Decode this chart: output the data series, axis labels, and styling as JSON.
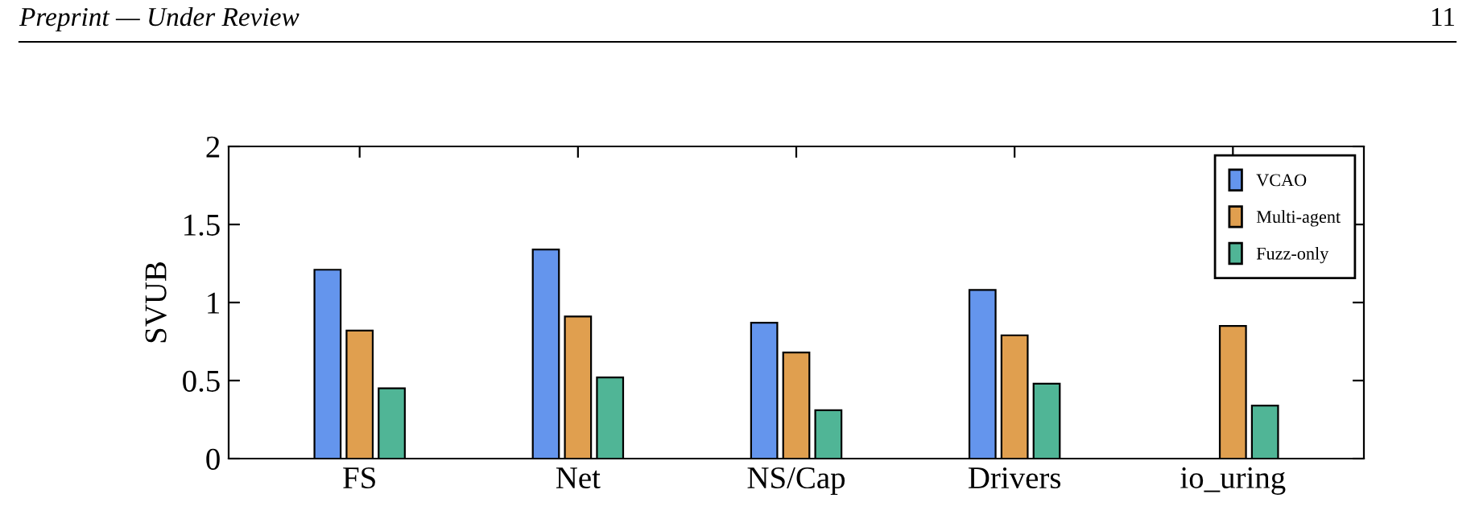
{
  "chart_data": {
    "type": "bar",
    "ylabel": "SVUB",
    "categories": [
      "FS",
      "Net",
      "NS/Cap",
      "Drivers",
      "io_uring"
    ],
    "series": [
      {
        "name": "VCAO",
        "color": "#6495ed",
        "values": [
          1.21,
          1.34,
          0.87,
          1.08,
          null
        ]
      },
      {
        "name": "Multi-agent",
        "color": "#e09f4f",
        "values": [
          0.82,
          0.91,
          0.68,
          0.79,
          0.85
        ]
      },
      {
        "name": "Fuzz-only",
        "color": "#50b596",
        "values": [
          0.45,
          0.52,
          0.31,
          0.48,
          0.34
        ]
      }
    ],
    "ylim": [
      0,
      2
    ],
    "yticks": [
      0,
      0.5,
      1,
      1.5,
      2
    ],
    "legend": "top right",
    "grid": false,
    "annotations": [
      "Preprint — Under Review",
      "11"
    ]
  }
}
